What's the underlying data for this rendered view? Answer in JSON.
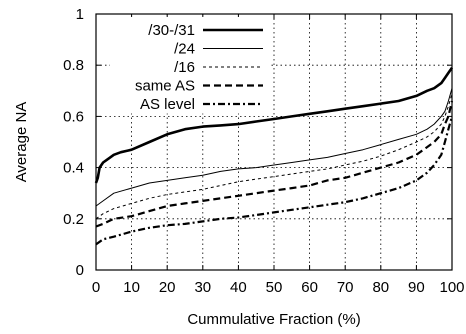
{
  "chart_data": {
    "type": "line",
    "xlabel": "Cummulative Fraction (%)",
    "ylabel": "Average NA",
    "xlim": [
      0,
      100
    ],
    "ylim": [
      0,
      1
    ],
    "xticks": [
      0,
      10,
      20,
      30,
      40,
      50,
      60,
      70,
      80,
      90,
      100
    ],
    "yticks": [
      0,
      0.2,
      0.4,
      0.6,
      0.8,
      1
    ],
    "grid": true,
    "legend_position": "top-left",
    "series": [
      {
        "name": "/30-/31",
        "style": "solid-thick",
        "x": [
          0,
          0.5,
          1,
          2,
          3,
          4,
          5,
          7,
          10,
          15,
          20,
          25,
          30,
          35,
          40,
          45,
          50,
          55,
          60,
          65,
          70,
          75,
          80,
          85,
          90,
          93,
          95,
          97,
          98,
          99,
          100
        ],
        "y": [
          0.34,
          0.36,
          0.4,
          0.42,
          0.43,
          0.44,
          0.45,
          0.46,
          0.47,
          0.5,
          0.53,
          0.55,
          0.56,
          0.565,
          0.57,
          0.58,
          0.59,
          0.6,
          0.61,
          0.62,
          0.63,
          0.64,
          0.65,
          0.66,
          0.68,
          0.7,
          0.71,
          0.73,
          0.75,
          0.77,
          0.79
        ]
      },
      {
        "name": "/24",
        "style": "solid-thin",
        "x": [
          0,
          2,
          5,
          10,
          15,
          20,
          25,
          30,
          35,
          40,
          45,
          50,
          55,
          60,
          65,
          70,
          75,
          80,
          85,
          90,
          93,
          95,
          97,
          98,
          99,
          100
        ],
        "y": [
          0.25,
          0.27,
          0.3,
          0.32,
          0.34,
          0.35,
          0.36,
          0.37,
          0.385,
          0.395,
          0.4,
          0.41,
          0.42,
          0.43,
          0.44,
          0.455,
          0.47,
          0.49,
          0.51,
          0.53,
          0.55,
          0.57,
          0.6,
          0.62,
          0.66,
          0.71
        ]
      },
      {
        "name": "/16",
        "style": "dotted",
        "x": [
          0,
          2,
          5,
          10,
          15,
          20,
          25,
          30,
          35,
          40,
          45,
          50,
          55,
          60,
          65,
          70,
          75,
          80,
          85,
          90,
          93,
          95,
          97,
          98,
          99,
          100
        ],
        "y": [
          0.2,
          0.22,
          0.24,
          0.26,
          0.28,
          0.295,
          0.305,
          0.315,
          0.33,
          0.345,
          0.355,
          0.365,
          0.375,
          0.385,
          0.395,
          0.41,
          0.425,
          0.445,
          0.47,
          0.5,
          0.52,
          0.54,
          0.57,
          0.6,
          0.64,
          0.69
        ]
      },
      {
        "name": "same AS",
        "style": "dashed",
        "x": [
          0,
          2,
          5,
          10,
          15,
          20,
          25,
          30,
          35,
          40,
          45,
          50,
          55,
          60,
          65,
          70,
          75,
          80,
          85,
          90,
          93,
          95,
          97,
          98,
          99,
          100
        ],
        "y": [
          0.17,
          0.18,
          0.2,
          0.21,
          0.23,
          0.25,
          0.26,
          0.27,
          0.28,
          0.29,
          0.3,
          0.31,
          0.32,
          0.33,
          0.35,
          0.36,
          0.38,
          0.4,
          0.42,
          0.45,
          0.48,
          0.5,
          0.53,
          0.57,
          0.6,
          0.66
        ]
      },
      {
        "name": "AS level",
        "style": "dash-dot",
        "x": [
          0,
          2,
          5,
          10,
          15,
          20,
          25,
          30,
          35,
          40,
          45,
          50,
          55,
          60,
          65,
          70,
          75,
          80,
          85,
          90,
          93,
          95,
          97,
          98,
          99,
          100
        ],
        "y": [
          0.1,
          0.12,
          0.13,
          0.15,
          0.165,
          0.175,
          0.18,
          0.19,
          0.2,
          0.205,
          0.215,
          0.225,
          0.235,
          0.245,
          0.255,
          0.265,
          0.28,
          0.3,
          0.32,
          0.35,
          0.38,
          0.41,
          0.45,
          0.5,
          0.55,
          0.6
        ]
      }
    ]
  }
}
